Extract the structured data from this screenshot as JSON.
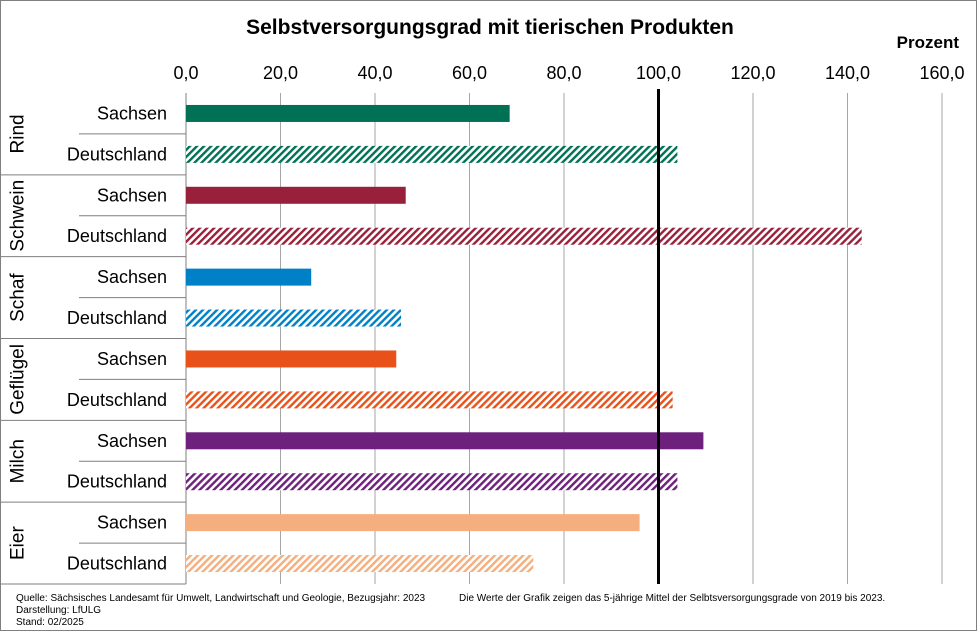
{
  "chart_data": {
    "type": "bar",
    "orientation": "horizontal",
    "title": "Selbstversorgungsgrad mit tierischen Produkten",
    "unit_label": "Prozent",
    "xlim": [
      0,
      160
    ],
    "x_ticks": [
      "0,0",
      "20,0",
      "40,0",
      "60,0",
      "80,0",
      "100,0",
      "120,0",
      "140,0",
      "160,0"
    ],
    "reference_line": 100,
    "grid": "vertical",
    "groups": [
      {
        "name": "Rind",
        "color": "#007154",
        "bars": [
          {
            "label": "Sachsen",
            "value": 68.5,
            "pattern": "solid"
          },
          {
            "label": "Deutschland",
            "value": 104.0,
            "pattern": "hatched"
          }
        ]
      },
      {
        "name": "Schwein",
        "color": "#98203a",
        "bars": [
          {
            "label": "Sachsen",
            "value": 46.5,
            "pattern": "solid"
          },
          {
            "label": "Deutschland",
            "value": 143.0,
            "pattern": "hatched"
          }
        ]
      },
      {
        "name": "Schaf",
        "color": "#0080c6",
        "bars": [
          {
            "label": "Sachsen",
            "value": 26.5,
            "pattern": "solid"
          },
          {
            "label": "Deutschland",
            "value": 45.5,
            "pattern": "hatched"
          }
        ]
      },
      {
        "name": "Geflügel",
        "color": "#e8521a",
        "bars": [
          {
            "label": "Sachsen",
            "value": 44.5,
            "pattern": "solid"
          },
          {
            "label": "Deutschland",
            "value": 103.0,
            "pattern": "hatched"
          }
        ]
      },
      {
        "name": "Milch",
        "color": "#6d207c",
        "bars": [
          {
            "label": "Sachsen",
            "value": 109.5,
            "pattern": "solid"
          },
          {
            "label": "Deutschland",
            "value": 104.0,
            "pattern": "hatched"
          }
        ]
      },
      {
        "name": "Eier",
        "color": "#f5ae7d",
        "bars": [
          {
            "label": "Sachsen",
            "value": 96.0,
            "pattern": "solid"
          },
          {
            "label": "Deutschland",
            "value": 73.5,
            "pattern": "hatched"
          }
        ]
      }
    ]
  },
  "footer": {
    "source": "Quelle:  Sächsisches Landesamt für Umwelt, Landwirtschaft und Geologie, Bezugsjahr: 2023",
    "note": "Die Werte  der Grafik zeigen das 5-jährige Mittel der Selbtsversorgungsgrade von 2019 bis 2023.",
    "author": "Darstellung: LfULG",
    "status": "Stand: 02/2025"
  }
}
